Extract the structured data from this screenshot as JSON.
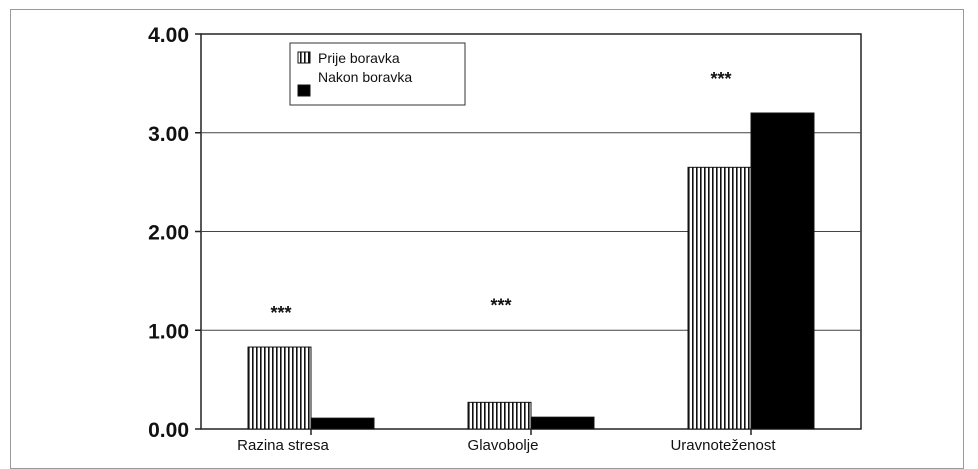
{
  "chart_data": {
    "type": "bar",
    "title": "",
    "xlabel": "",
    "ylabel": "",
    "categories": [
      "Razina stresa",
      "Glavobolje",
      "Uravnoteženost"
    ],
    "series": [
      {
        "name": "Prije boravka",
        "values": [
          0.83,
          0.27,
          2.65
        ],
        "pattern": "vertical-stripes"
      },
      {
        "name": "Nakon boravka",
        "values": [
          0.11,
          0.12,
          3.2
        ],
        "color": "#000000"
      }
    ],
    "yticks": [
      "0.00",
      "1.00",
      "2.00",
      "3.00",
      "4.00"
    ],
    "ylim": [
      0,
      4
    ],
    "grid": true,
    "legend": "top-left",
    "annotations": [
      "***",
      "***",
      "***"
    ]
  }
}
